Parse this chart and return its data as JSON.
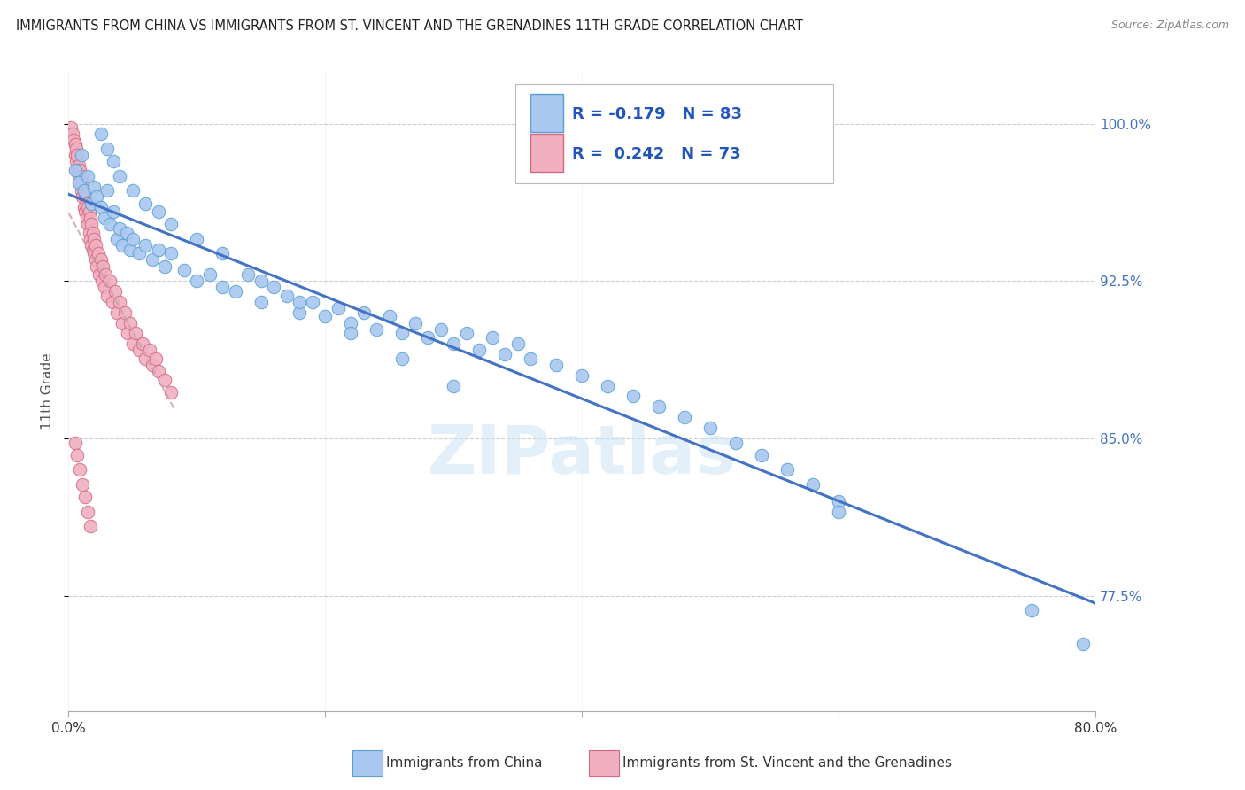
{
  "title": "IMMIGRANTS FROM CHINA VS IMMIGRANTS FROM ST. VINCENT AND THE GRENADINES 11TH GRADE CORRELATION CHART",
  "source": "Source: ZipAtlas.com",
  "ylabel": "11th Grade",
  "legend_R_china": "-0.179",
  "legend_N_china": "83",
  "legend_R_svg": "0.242",
  "legend_N_svg": "73",
  "china_color": "#a8c8f0",
  "china_edge_color": "#5a9fd4",
  "svg_color": "#f0b0c0",
  "svg_edge_color": "#d46880",
  "trendline_china_color": "#4472c4",
  "trendline_svg_color": "#c8a0a8",
  "background_color": "#ffffff",
  "grid_color": "#cccccc",
  "right_tick_color": "#4472c4",
  "xlim": [
    0.0,
    0.8
  ],
  "ylim": [
    0.72,
    1.025
  ],
  "yticks": [
    0.775,
    0.85,
    0.925,
    1.0
  ],
  "ytick_labels": [
    "77.5%",
    "85.0%",
    "92.5%",
    "100.0%"
  ],
  "xtick_positions": [
    0.0,
    0.2,
    0.4,
    0.6,
    0.8
  ],
  "china_x": [
    0.005,
    0.008,
    0.01,
    0.012,
    0.015,
    0.018,
    0.02,
    0.022,
    0.025,
    0.028,
    0.03,
    0.032,
    0.035,
    0.038,
    0.04,
    0.042,
    0.045,
    0.048,
    0.05,
    0.055,
    0.06,
    0.065,
    0.07,
    0.075,
    0.08,
    0.09,
    0.1,
    0.11,
    0.12,
    0.13,
    0.14,
    0.15,
    0.16,
    0.17,
    0.18,
    0.19,
    0.2,
    0.21,
    0.22,
    0.23,
    0.24,
    0.25,
    0.26,
    0.27,
    0.28,
    0.29,
    0.3,
    0.31,
    0.32,
    0.33,
    0.34,
    0.35,
    0.36,
    0.38,
    0.4,
    0.42,
    0.44,
    0.46,
    0.48,
    0.5,
    0.52,
    0.54,
    0.56,
    0.58,
    0.6,
    0.025,
    0.03,
    0.035,
    0.04,
    0.05,
    0.06,
    0.07,
    0.08,
    0.1,
    0.12,
    0.15,
    0.18,
    0.22,
    0.26,
    0.3,
    0.6,
    0.75,
    0.79
  ],
  "china_y": [
    0.978,
    0.972,
    0.985,
    0.968,
    0.975,
    0.962,
    0.97,
    0.965,
    0.96,
    0.955,
    0.968,
    0.952,
    0.958,
    0.945,
    0.95,
    0.942,
    0.948,
    0.94,
    0.945,
    0.938,
    0.942,
    0.935,
    0.94,
    0.932,
    0.938,
    0.93,
    0.925,
    0.928,
    0.922,
    0.92,
    0.928,
    0.915,
    0.922,
    0.918,
    0.91,
    0.915,
    0.908,
    0.912,
    0.905,
    0.91,
    0.902,
    0.908,
    0.9,
    0.905,
    0.898,
    0.902,
    0.895,
    0.9,
    0.892,
    0.898,
    0.89,
    0.895,
    0.888,
    0.885,
    0.88,
    0.875,
    0.87,
    0.865,
    0.86,
    0.855,
    0.848,
    0.842,
    0.835,
    0.828,
    0.82,
    0.995,
    0.988,
    0.982,
    0.975,
    0.968,
    0.962,
    0.958,
    0.952,
    0.945,
    0.938,
    0.925,
    0.915,
    0.9,
    0.888,
    0.875,
    0.815,
    0.768,
    0.752
  ],
  "svg_x": [
    0.002,
    0.003,
    0.004,
    0.005,
    0.005,
    0.006,
    0.006,
    0.007,
    0.007,
    0.008,
    0.008,
    0.009,
    0.009,
    0.01,
    0.01,
    0.011,
    0.011,
    0.012,
    0.012,
    0.013,
    0.013,
    0.014,
    0.014,
    0.015,
    0.015,
    0.016,
    0.016,
    0.017,
    0.017,
    0.018,
    0.018,
    0.019,
    0.019,
    0.02,
    0.02,
    0.021,
    0.021,
    0.022,
    0.023,
    0.024,
    0.025,
    0.026,
    0.027,
    0.028,
    0.029,
    0.03,
    0.032,
    0.034,
    0.036,
    0.038,
    0.04,
    0.042,
    0.044,
    0.046,
    0.048,
    0.05,
    0.052,
    0.055,
    0.058,
    0.06,
    0.063,
    0.065,
    0.068,
    0.07,
    0.075,
    0.08,
    0.005,
    0.007,
    0.009,
    0.011,
    0.013,
    0.015,
    0.017
  ],
  "svg_y": [
    0.998,
    0.995,
    0.992,
    0.99,
    0.985,
    0.988,
    0.982,
    0.978,
    0.985,
    0.975,
    0.98,
    0.972,
    0.978,
    0.968,
    0.975,
    0.965,
    0.972,
    0.96,
    0.968,
    0.958,
    0.965,
    0.955,
    0.962,
    0.952,
    0.96,
    0.948,
    0.958,
    0.945,
    0.955,
    0.942,
    0.952,
    0.94,
    0.948,
    0.938,
    0.945,
    0.935,
    0.942,
    0.932,
    0.938,
    0.928,
    0.935,
    0.925,
    0.932,
    0.922,
    0.928,
    0.918,
    0.925,
    0.915,
    0.92,
    0.91,
    0.915,
    0.905,
    0.91,
    0.9,
    0.905,
    0.895,
    0.9,
    0.892,
    0.895,
    0.888,
    0.892,
    0.885,
    0.888,
    0.882,
    0.878,
    0.872,
    0.848,
    0.842,
    0.835,
    0.828,
    0.822,
    0.815,
    0.808
  ]
}
